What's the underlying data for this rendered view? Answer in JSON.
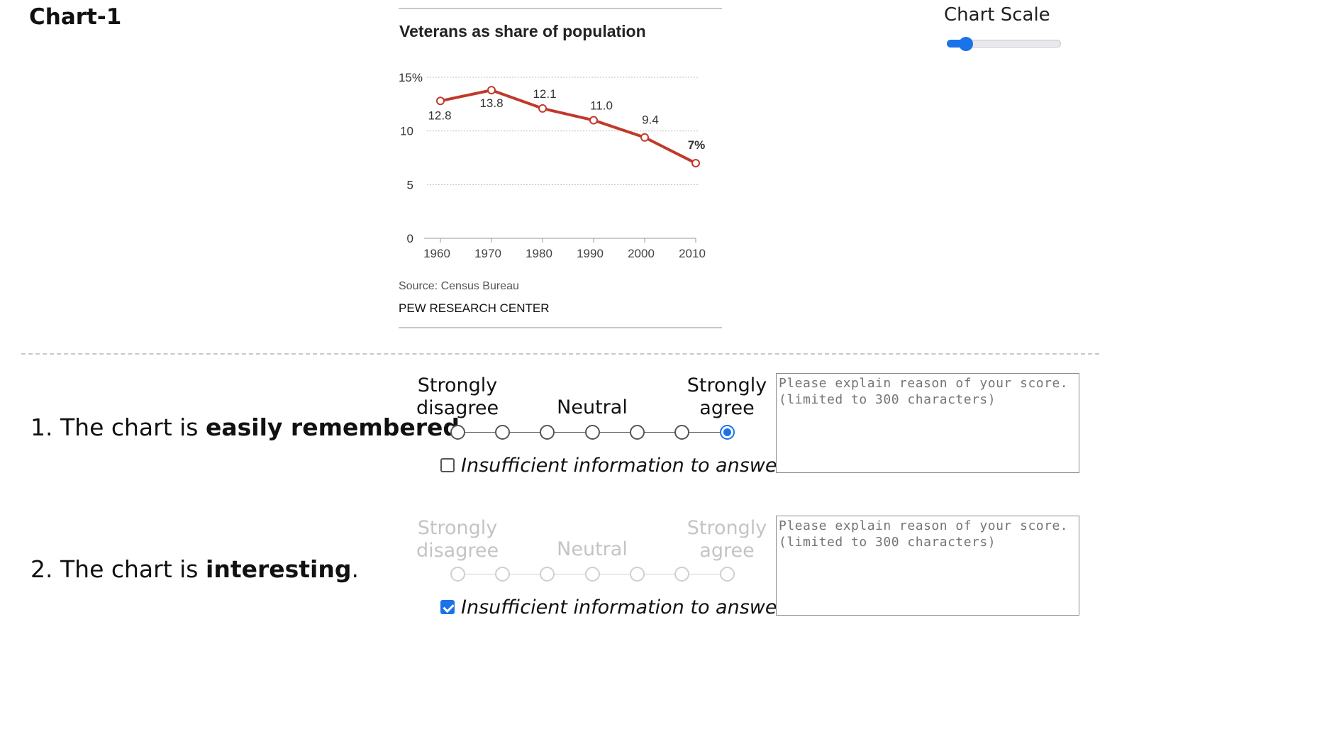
{
  "page": {
    "title": "Chart-1"
  },
  "scale_control": {
    "label": "Chart Scale",
    "value_fraction": 0.15
  },
  "chart": {
    "source": "Source: Census Bureau",
    "publisher": "PEW RESEARCH CENTER"
  },
  "chart_data": {
    "type": "line",
    "title": "Veterans as share of population",
    "x": [
      1960,
      1970,
      1980,
      1990,
      2000,
      2010
    ],
    "series": [
      {
        "values": [
          12.8,
          13.8,
          12.1,
          11.0,
          9.4,
          7
        ]
      }
    ],
    "data_labels": [
      "12.8",
      "13.8",
      "12.1",
      "11.0",
      "9.4",
      "7%"
    ],
    "y_ticks": [
      "0",
      "5",
      "10",
      "15%"
    ],
    "x_ticks": [
      "1960",
      "1970",
      "1980",
      "1990",
      "2000",
      "2010"
    ],
    "ylim": [
      0,
      15
    ],
    "grid": true,
    "colors": {
      "line": "#c0392b",
      "grid": "#bdbdbd"
    }
  },
  "questions": [
    {
      "number": "1.",
      "prefix": "The chart is",
      "emphasis": "easily remembered",
      "suffix": ".",
      "scale_labels": {
        "low": "Strongly disagree",
        "mid": "Neutral",
        "high": "Strongly agree"
      },
      "options": 7,
      "selected_index": 6,
      "disabled": false,
      "insufficient_label": "Insufficient information to answer.",
      "insufficient_checked": false,
      "reason_placeholder": "Please explain reason of your score.\n(limited to 300 characters)",
      "reason_value": ""
    },
    {
      "number": "2.",
      "prefix": "The chart is",
      "emphasis": "interesting",
      "suffix": ".",
      "scale_labels": {
        "low": "Strongly disagree",
        "mid": "Neutral",
        "high": "Strongly agree"
      },
      "options": 7,
      "selected_index": null,
      "disabled": true,
      "insufficient_label": "Insufficient information to answer.",
      "insufficient_checked": true,
      "reason_placeholder": "Please explain reason of your score.\n(limited to 300 characters)",
      "reason_value": ""
    }
  ],
  "colors": {
    "accent": "#1a73e8",
    "disabled_text": "#c4c4c4"
  }
}
